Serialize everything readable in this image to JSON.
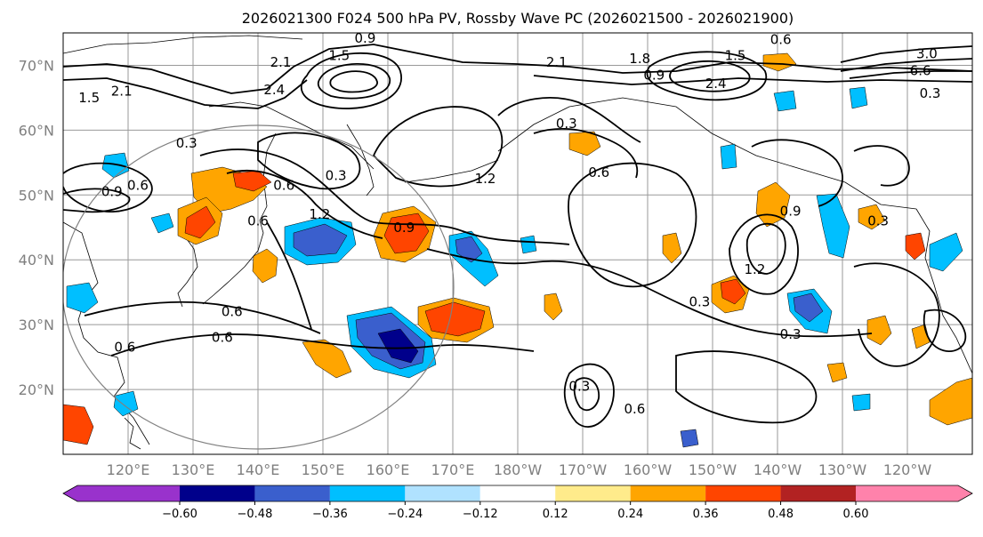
{
  "chart_data": {
    "type": "map",
    "title": "2026021300 F024 500 hPa PV, Rossby Wave PC (2026021500 - 2026021900)",
    "lat_range": [
      10,
      75
    ],
    "lon_range": [
      110,
      250
    ],
    "lat_ticks": [
      {
        "value": 70,
        "label": "70°N"
      },
      {
        "value": 60,
        "label": "60°N"
      },
      {
        "value": 50,
        "label": "50°N"
      },
      {
        "value": 40,
        "label": "40°N"
      },
      {
        "value": 30,
        "label": "30°N"
      },
      {
        "value": 20,
        "label": "20°N"
      }
    ],
    "lon_ticks": [
      {
        "value": 120,
        "label": "120°E"
      },
      {
        "value": 130,
        "label": "130°E"
      },
      {
        "value": 140,
        "label": "140°E"
      },
      {
        "value": 150,
        "label": "150°E"
      },
      {
        "value": 160,
        "label": "160°E"
      },
      {
        "value": 170,
        "label": "170°E"
      },
      {
        "value": 180,
        "label": "180°W"
      },
      {
        "value": 190,
        "label": "170°W"
      },
      {
        "value": 200,
        "label": "160°W"
      },
      {
        "value": 210,
        "label": "150°W"
      },
      {
        "value": 220,
        "label": "140°W"
      },
      {
        "value": 230,
        "label": "130°W"
      },
      {
        "value": 240,
        "label": "120°W"
      }
    ],
    "grid": true,
    "colorbar": {
      "position": "bottom",
      "extend": "both",
      "ticks": [
        "−0.60",
        "−0.48",
        "−0.36",
        "−0.24",
        "−0.12",
        "0.12",
        "0.24",
        "0.36",
        "0.48",
        "0.60"
      ],
      "bin_colors": [
        "#9932cc",
        "#00008b",
        "#3a5fcd",
        "#00bfff",
        "#b0e2ff",
        "#ffffff",
        "#ffeb8b",
        "#ffa500",
        "#ff4500",
        "#b22222",
        "#ff82ab"
      ]
    },
    "contour_labels": [
      {
        "text": "0.9",
        "lon": 156.5,
        "lat": 74.2
      },
      {
        "text": "1.5",
        "lon": 152.5,
        "lat": 71.5
      },
      {
        "text": "2.1",
        "lon": 143.5,
        "lat": 70.5
      },
      {
        "text": "2.4",
        "lon": 142.5,
        "lat": 66.2
      },
      {
        "text": "2.1",
        "lon": 186.0,
        "lat": 70.5
      },
      {
        "text": "1.8",
        "lon": 198.8,
        "lat": 71.0
      },
      {
        "text": "0.9",
        "lon": 201.0,
        "lat": 68.5
      },
      {
        "text": "2.4",
        "lon": 210.5,
        "lat": 67.2
      },
      {
        "text": "1.5",
        "lon": 213.5,
        "lat": 71.5
      },
      {
        "text": "0.6",
        "lon": 220.5,
        "lat": 74.0
      },
      {
        "text": "3.0",
        "lon": 243.0,
        "lat": 71.8
      },
      {
        "text": "6.6",
        "lon": 242.0,
        "lat": 69.2
      },
      {
        "text": "0.3",
        "lon": 243.5,
        "lat": 65.7
      },
      {
        "text": "1.5",
        "lon": 114.0,
        "lat": 65.0
      },
      {
        "text": "2.1",
        "lon": 119.0,
        "lat": 66.0
      },
      {
        "text": "0.3",
        "lon": 129.0,
        "lat": 58.0
      },
      {
        "text": "0.9",
        "lon": 117.5,
        "lat": 50.5
      },
      {
        "text": "0.6",
        "lon": 121.5,
        "lat": 51.5
      },
      {
        "text": "0.6",
        "lon": 144.0,
        "lat": 51.5
      },
      {
        "text": "0.3",
        "lon": 152.0,
        "lat": 53.0
      },
      {
        "text": "1.2",
        "lon": 149.5,
        "lat": 47.0
      },
      {
        "text": "0.6",
        "lon": 140.0,
        "lat": 46.0
      },
      {
        "text": "0.9",
        "lon": 162.5,
        "lat": 45.0
      },
      {
        "text": "1.2",
        "lon": 175.0,
        "lat": 52.5
      },
      {
        "text": "0.3",
        "lon": 187.5,
        "lat": 61.0
      },
      {
        "text": "0.6",
        "lon": 192.5,
        "lat": 53.5
      },
      {
        "text": "0.9",
        "lon": 222.0,
        "lat": 47.5
      },
      {
        "text": "1.2",
        "lon": 216.5,
        "lat": 38.5
      },
      {
        "text": "0.3",
        "lon": 208.0,
        "lat": 33.5
      },
      {
        "text": "0.3",
        "lon": 235.5,
        "lat": 46.0
      },
      {
        "text": "0.3",
        "lon": 222.0,
        "lat": 28.5
      },
      {
        "text": "0.6",
        "lon": 136.0,
        "lat": 32.0
      },
      {
        "text": "0.6",
        "lon": 134.5,
        "lat": 28.0
      },
      {
        "text": "0.6",
        "lon": 119.5,
        "lat": 26.5
      },
      {
        "text": "0.3",
        "lon": 189.5,
        "lat": 20.5
      },
      {
        "text": "0.6",
        "lon": 198.0,
        "lat": 17.0
      }
    ]
  }
}
